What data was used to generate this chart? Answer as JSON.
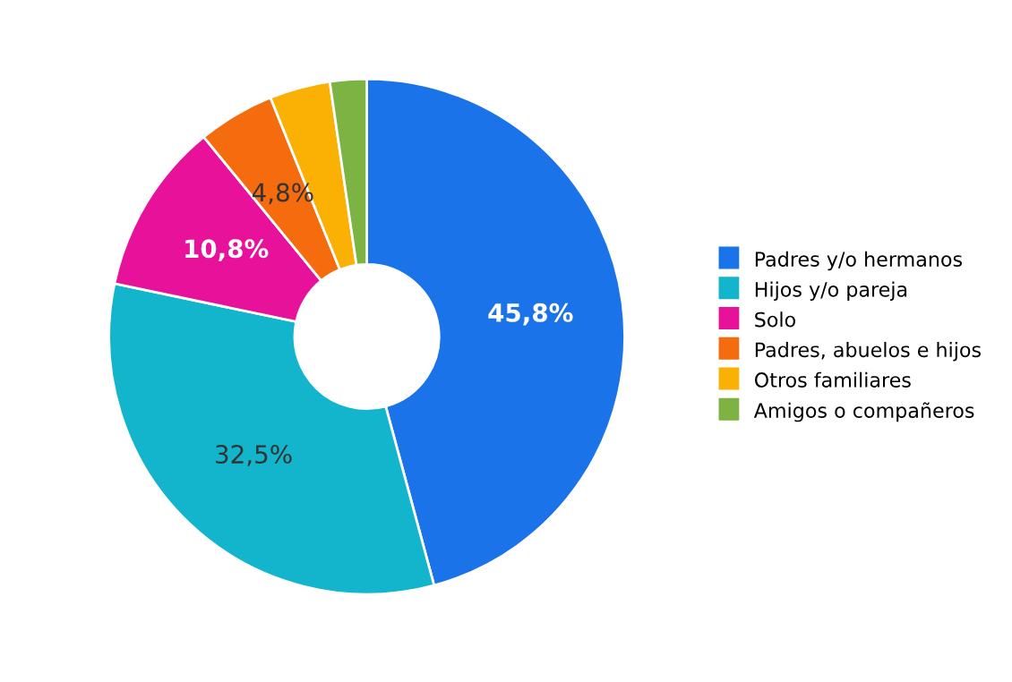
{
  "chart_data": {
    "type": "donut",
    "categories": [
      "Padres y/o hermanos",
      "Hijos y/o pareja",
      "Solo",
      "Padres, abuelos e hijos",
      "Otros familiares",
      "Amigos o compañeros"
    ],
    "values": [
      45.8,
      32.5,
      10.8,
      4.8,
      3.8,
      2.3
    ],
    "colors": [
      "#1a73e8",
      "#12b5cb",
      "#e8119a",
      "#f56c0f",
      "#fbb004",
      "#7cb342"
    ],
    "value_labels": [
      "45,8%",
      "32,5%",
      "10,8%",
      "4,8%",
      null,
      null
    ],
    "legend": "right"
  }
}
